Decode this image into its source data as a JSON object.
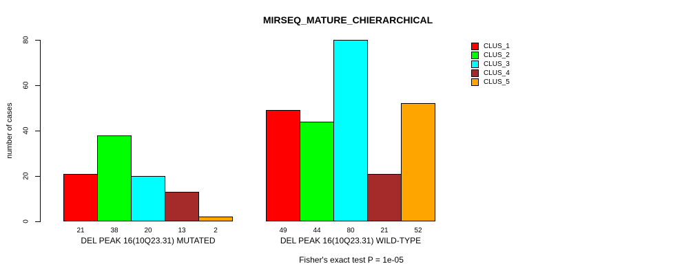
{
  "figure": {
    "background": "#FFFFFF",
    "axis_color": "#000000",
    "text_color": "#000000"
  },
  "chart_data": {
    "type": "bar",
    "title": "MIRSEQ_MATURE_CHIERARCHICAL",
    "xlabel": "",
    "ylabel": "number of cases",
    "ylim": [
      0,
      80
    ],
    "yticks": [
      0,
      20,
      40,
      60,
      80
    ],
    "grid": false,
    "bar_value_labels_shown": true,
    "legend_position": "right-outside",
    "categories": [
      "DEL PEAK 16(10Q23.31) MUTATED",
      "DEL PEAK 16(10Q23.31) WILD-TYPE"
    ],
    "series": [
      {
        "name": "CLUS_1",
        "color": "#FF0000",
        "values": [
          21,
          49
        ]
      },
      {
        "name": "CLUS_2",
        "color": "#00FF00",
        "values": [
          38,
          44
        ]
      },
      {
        "name": "CLUS_3",
        "color": "#00FFFF",
        "values": [
          20,
          80
        ]
      },
      {
        "name": "CLUS_4",
        "color": "#A52A2A",
        "values": [
          13,
          21
        ]
      },
      {
        "name": "CLUS_5",
        "color": "#FFA500",
        "values": [
          2,
          52
        ]
      }
    ],
    "annotation": "Fisher's exact test P = 1e-05"
  }
}
